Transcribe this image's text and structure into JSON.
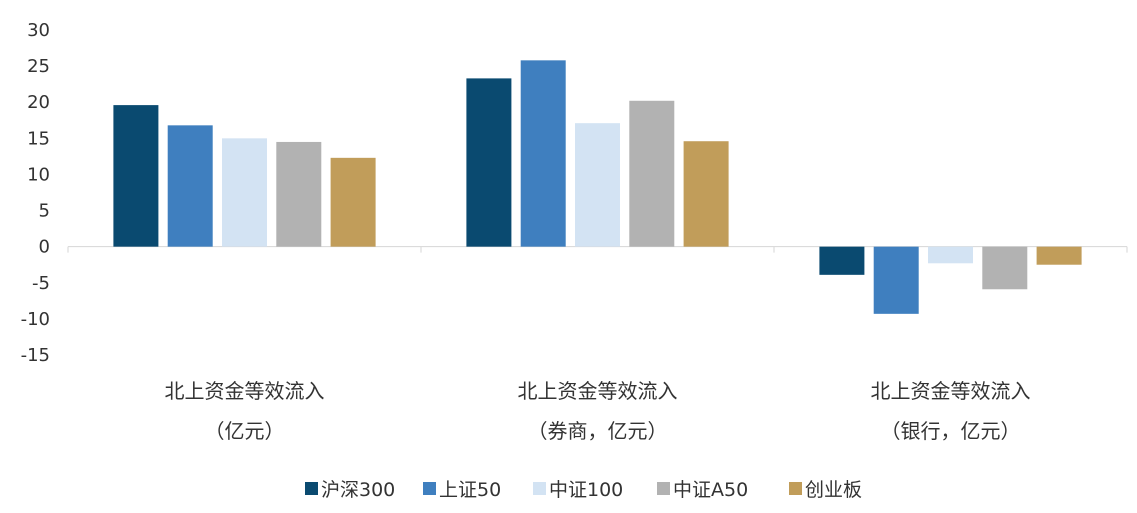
{
  "chart_data": {
    "type": "bar",
    "title": "",
    "xlabel": "",
    "ylabel": "",
    "ylim": [
      -15,
      30
    ],
    "yticks": [
      30,
      25,
      20,
      15,
      10,
      5,
      0,
      -5,
      -10,
      -15
    ],
    "grid": false,
    "legend_position": "bottom",
    "categories": [
      {
        "line1": "北上资金等效流入",
        "line2": "（亿元）"
      },
      {
        "line1": "北上资金等效流入",
        "line2": "（券商，亿元）"
      },
      {
        "line1": "北上资金等效流入",
        "line2": "（银行，亿元）"
      }
    ],
    "series": [
      {
        "name": "沪深300",
        "color": "#0a4a70",
        "values": [
          19.6,
          23.3,
          -3.9
        ]
      },
      {
        "name": "上证50",
        "color": "#3f7fbf",
        "values": [
          16.8,
          25.8,
          -9.3
        ]
      },
      {
        "name": "中证100",
        "color": "#d3e3f3",
        "values": [
          15.0,
          17.1,
          -2.3
        ]
      },
      {
        "name": "中证A50",
        "color": "#b2b2b2",
        "values": [
          14.5,
          20.2,
          -5.9
        ]
      },
      {
        "name": "创业板",
        "color": "#c19d5a",
        "values": [
          12.3,
          14.6,
          -2.5
        ]
      }
    ]
  }
}
